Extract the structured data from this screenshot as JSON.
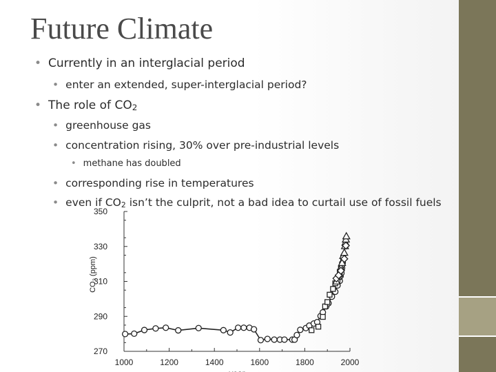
{
  "slide": {
    "title": "Future Climate",
    "bullets": [
      {
        "level": 1,
        "text": "Currently in an interglacial period"
      },
      {
        "level": 2,
        "text": "enter an extended, super-interglacial period?"
      },
      {
        "level": 1,
        "text": "The role of CO",
        "sub": "2"
      },
      {
        "level": 2,
        "text": "greenhouse gas"
      },
      {
        "level": 2,
        "text": "concentration rising, 30% over pre-industrial levels"
      },
      {
        "level": 3,
        "text": "methane has doubled"
      },
      {
        "level": 2,
        "text": "corresponding rise in temperatures"
      },
      {
        "level": 2,
        "text": "even if CO",
        "sub": "2",
        "text_after": " isn’t the culprit, not a bad idea to curtail use of fossil fuels"
      }
    ]
  },
  "colors": {
    "sidebar": "#7b7659",
    "sidebar_accent": "#a6a183",
    "title": "#4a4a4a",
    "text": "#2b2b2b"
  },
  "chart_data": {
    "type": "scatter",
    "title": "",
    "xlabel": "year",
    "ylabel": "CO₂ (ppm)",
    "xlim": [
      1000,
      2000
    ],
    "ylim": [
      270,
      350
    ],
    "x_ticks": [
      "1000",
      "1200",
      "1400",
      "1600",
      "1800",
      "2000"
    ],
    "y_ticks": [
      "270",
      "290",
      "310",
      "330",
      "350"
    ],
    "series": [
      {
        "marker": "circle",
        "points": [
          [
            1005,
            279.9
          ],
          [
            1045,
            280.1
          ],
          [
            1090,
            282.2
          ],
          [
            1140,
            283.1
          ],
          [
            1185,
            283.5
          ],
          [
            1240,
            282.0
          ],
          [
            1330,
            283.3
          ],
          [
            1440,
            282.1
          ],
          [
            1470,
            280.8
          ],
          [
            1505,
            283.5
          ],
          [
            1530,
            283.5
          ],
          [
            1555,
            283.5
          ],
          [
            1575,
            282.6
          ],
          [
            1605,
            276.4
          ],
          [
            1635,
            277.1
          ],
          [
            1665,
            276.7
          ],
          [
            1690,
            276.7
          ],
          [
            1710,
            276.7
          ],
          [
            1745,
            276.7
          ],
          [
            1755,
            276.7
          ],
          [
            1765,
            279.3
          ],
          [
            1780,
            282.3
          ],
          [
            1805,
            283.3
          ],
          [
            1820,
            284.7
          ],
          [
            1840,
            285.9
          ],
          [
            1855,
            286.7
          ],
          [
            1870,
            290.2
          ],
          [
            1880,
            292.3
          ],
          [
            1895,
            295.7
          ],
          [
            1905,
            297.5
          ],
          [
            1920,
            301.3
          ],
          [
            1935,
            304.1
          ],
          [
            1945,
            307.7
          ],
          [
            1955,
            310.3
          ],
          [
            1958,
            313.0
          ],
          [
            1962,
            314.7
          ],
          [
            1965,
            317.7
          ],
          [
            1968,
            320.7
          ],
          [
            1972,
            323.0
          ]
        ]
      },
      {
        "marker": "square",
        "points": [
          [
            1830,
            282.1
          ],
          [
            1860,
            284.1
          ],
          [
            1880,
            289.7
          ],
          [
            1890,
            295.7
          ],
          [
            1900,
            298.2
          ],
          [
            1910,
            302.4
          ],
          [
            1925,
            305.7
          ],
          [
            1935,
            308.9
          ],
          [
            1945,
            310.7
          ],
          [
            1950,
            312.5
          ],
          [
            1955,
            315.5
          ],
          [
            1960,
            317.3
          ],
          [
            1965,
            319.7
          ],
          [
            1970,
            323.3
          ]
        ]
      },
      {
        "marker": "triangle",
        "points": [
          [
            1940,
            310.1
          ],
          [
            1955,
            314.3
          ],
          [
            1960,
            317.9
          ],
          [
            1965,
            320.7
          ],
          [
            1970,
            324.7
          ],
          [
            1975,
            326.5
          ],
          [
            1978,
            330.3
          ],
          [
            1980,
            332.3
          ],
          [
            1982,
            334.1
          ],
          [
            1984,
            335.9
          ]
        ]
      },
      {
        "marker": "diamond",
        "points": [
          [
            1940,
            311.7
          ],
          [
            1950,
            313.5
          ],
          [
            1960,
            316.1
          ],
          [
            1975,
            322.9
          ],
          [
            1982,
            330.5
          ]
        ]
      }
    ]
  }
}
